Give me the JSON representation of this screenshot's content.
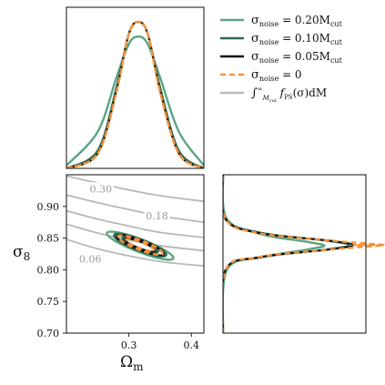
{
  "chart_data": [
    {
      "panel": "top-left",
      "type": "line",
      "title": "",
      "x_param": "Omega_m",
      "xlim": [
        0.2,
        0.42
      ],
      "ylim": [
        0,
        1.1
      ],
      "series": [
        {
          "legend_index": 0,
          "x": [
            0.2,
            0.25,
            0.28,
            0.3,
            0.315,
            0.33,
            0.35,
            0.38,
            0.42
          ],
          "y": [
            0.02,
            0.25,
            0.62,
            0.85,
            0.9,
            0.85,
            0.62,
            0.25,
            0.02
          ]
        },
        {
          "legend_index": 1,
          "x": [
            0.2,
            0.25,
            0.28,
            0.3,
            0.315,
            0.33,
            0.35,
            0.38,
            0.42
          ],
          "y": [
            0.0,
            0.12,
            0.55,
            0.92,
            1.0,
            0.92,
            0.55,
            0.12,
            0.0
          ]
        },
        {
          "legend_index": 2,
          "x": [
            0.2,
            0.25,
            0.28,
            0.3,
            0.315,
            0.33,
            0.35,
            0.38,
            0.42
          ],
          "y": [
            0.0,
            0.1,
            0.53,
            0.92,
            1.0,
            0.92,
            0.53,
            0.1,
            0.0
          ]
        },
        {
          "legend_index": 3,
          "x": [
            0.2,
            0.25,
            0.28,
            0.3,
            0.315,
            0.33,
            0.35,
            0.38,
            0.42
          ],
          "y": [
            0.0,
            0.1,
            0.52,
            0.92,
            1.0,
            0.92,
            0.52,
            0.1,
            0.0
          ]
        }
      ]
    },
    {
      "panel": "bottom-left",
      "type": "contour",
      "xlabel": "Ω",
      "xlabel_sub": "m",
      "ylabel": "σ",
      "ylabel_sub": "8",
      "xlim": [
        0.2,
        0.42
      ],
      "ylim": [
        0.7,
        0.95
      ],
      "xticks": [
        "0.3",
        "0.4"
      ],
      "xtick_values": [
        0.3,
        0.4
      ],
      "yticks": [
        "0.70",
        "0.75",
        "0.80",
        "0.85",
        "0.90"
      ],
      "ytick_values": [
        0.7,
        0.75,
        0.8,
        0.85,
        0.9
      ],
      "contour_labels": [
        {
          "text": "0.30",
          "x": 0.255,
          "y": 0.928
        },
        {
          "text": "0.18",
          "x": 0.345,
          "y": 0.885
        },
        {
          "text": "0.06",
          "x": 0.238,
          "y": 0.817
        }
      ],
      "grey_contours": [
        {
          "level": 0.3,
          "x": [
            0.2,
            0.25,
            0.3,
            0.35,
            0.42
          ],
          "y": [
            0.948,
            0.937,
            0.926,
            0.917,
            0.908
          ]
        },
        {
          "level": 0.24,
          "x": [
            0.2,
            0.25,
            0.3,
            0.35,
            0.42
          ],
          "y": [
            0.918,
            0.906,
            0.895,
            0.885,
            0.875
          ]
        },
        {
          "level": 0.18,
          "x": [
            0.2,
            0.25,
            0.3,
            0.35,
            0.42
          ],
          "y": [
            0.893,
            0.88,
            0.869,
            0.859,
            0.851
          ]
        },
        {
          "level": 0.12,
          "x": [
            0.2,
            0.25,
            0.3,
            0.35,
            0.42
          ],
          "y": [
            0.872,
            0.858,
            0.847,
            0.838,
            0.83
          ]
        },
        {
          "level": 0.06,
          "x": [
            0.2,
            0.25,
            0.3,
            0.35,
            0.42
          ],
          "y": [
            0.848,
            0.833,
            0.822,
            0.813,
            0.806
          ]
        }
      ],
      "ellipses": [
        {
          "legend_index": 0,
          "cx": 0.318,
          "cy": 0.838,
          "a": 0.056,
          "b": 0.009,
          "slope": -0.33
        },
        {
          "legend_index": 0,
          "cx": 0.318,
          "cy": 0.838,
          "a": 0.04,
          "b": 0.006,
          "slope": -0.33
        },
        {
          "legend_index": 1,
          "cx": 0.318,
          "cy": 0.839,
          "a": 0.044,
          "b": 0.008,
          "slope": -0.33
        },
        {
          "legend_index": 1,
          "cx": 0.318,
          "cy": 0.839,
          "a": 0.03,
          "b": 0.005,
          "slope": -0.33
        },
        {
          "legend_index": 2,
          "cx": 0.318,
          "cy": 0.839,
          "a": 0.04,
          "b": 0.007,
          "slope": -0.33
        },
        {
          "legend_index": 2,
          "cx": 0.318,
          "cy": 0.839,
          "a": 0.026,
          "b": 0.0045,
          "slope": -0.33
        },
        {
          "legend_index": 3,
          "cx": 0.318,
          "cy": 0.839,
          "a": 0.038,
          "b": 0.0068,
          "slope": -0.33
        },
        {
          "legend_index": 3,
          "cx": 0.318,
          "cy": 0.839,
          "a": 0.024,
          "b": 0.0042,
          "slope": -0.33
        }
      ]
    },
    {
      "panel": "bottom-right",
      "type": "line",
      "orientation": "horizontal",
      "y_param": "sigma_8",
      "ylim": [
        0.7,
        0.95
      ],
      "xlim": [
        0,
        1.1
      ],
      "series": [
        {
          "legend_index": 0,
          "y": [
            0.7,
            0.8,
            0.82,
            0.832,
            0.838,
            0.844,
            0.856,
            0.88,
            0.95
          ],
          "x": [
            0.0,
            0.03,
            0.3,
            0.65,
            0.78,
            0.65,
            0.3,
            0.03,
            0.0
          ]
        },
        {
          "legend_index": 1,
          "y": [
            0.7,
            0.8,
            0.82,
            0.832,
            0.839,
            0.846,
            0.858,
            0.88,
            0.95
          ],
          "x": [
            0.0,
            0.02,
            0.3,
            0.8,
            0.97,
            0.8,
            0.3,
            0.02,
            0.0
          ]
        },
        {
          "legend_index": 2,
          "y": [
            0.7,
            0.8,
            0.82,
            0.832,
            0.839,
            0.846,
            0.858,
            0.88,
            0.95
          ],
          "x": [
            0.0,
            0.02,
            0.28,
            0.82,
            1.0,
            0.82,
            0.28,
            0.02,
            0.0
          ]
        },
        {
          "legend_index": 3,
          "y": [
            0.7,
            0.8,
            0.82,
            0.832,
            0.839,
            0.846,
            0.858,
            0.88,
            0.95
          ],
          "x": [
            0.0,
            0.02,
            0.27,
            0.83,
            1.0,
            0.83,
            0.27,
            0.02,
            0.0
          ]
        }
      ]
    }
  ],
  "legend": {
    "placement": "top-right",
    "entries": [
      {
        "main": "σ",
        "sub": "noise",
        "rest": " = 0.20M",
        "rest_sub": "cut",
        "color": "#5aa583",
        "dashed": false
      },
      {
        "main": "σ",
        "sub": "noise",
        "rest": " = 0.10M",
        "rest_sub": "cut",
        "color": "#2d6a52",
        "dashed": false
      },
      {
        "main": "σ",
        "sub": "noise",
        "rest": " = 0.05M",
        "rest_sub": "cut",
        "color": "#111111",
        "dashed": false
      },
      {
        "main": "σ",
        "sub": "noise",
        "rest": " = 0",
        "rest_sub": "",
        "color": "#f5923c",
        "dashed": true
      },
      {
        "integral": "∫",
        "upper": "∞",
        "lower": "M",
        "lower_sub": "cut",
        "body": " f",
        "body_sub": "PS",
        "tail": "(σ)dM",
        "color": "#b8b8b8",
        "dashed": false
      }
    ]
  },
  "colors": {
    "grey": "#b8b8b8",
    "green_light": "#5aa583",
    "green_dark": "#2d6a52",
    "black": "#111111",
    "orange": "#f5923c"
  }
}
